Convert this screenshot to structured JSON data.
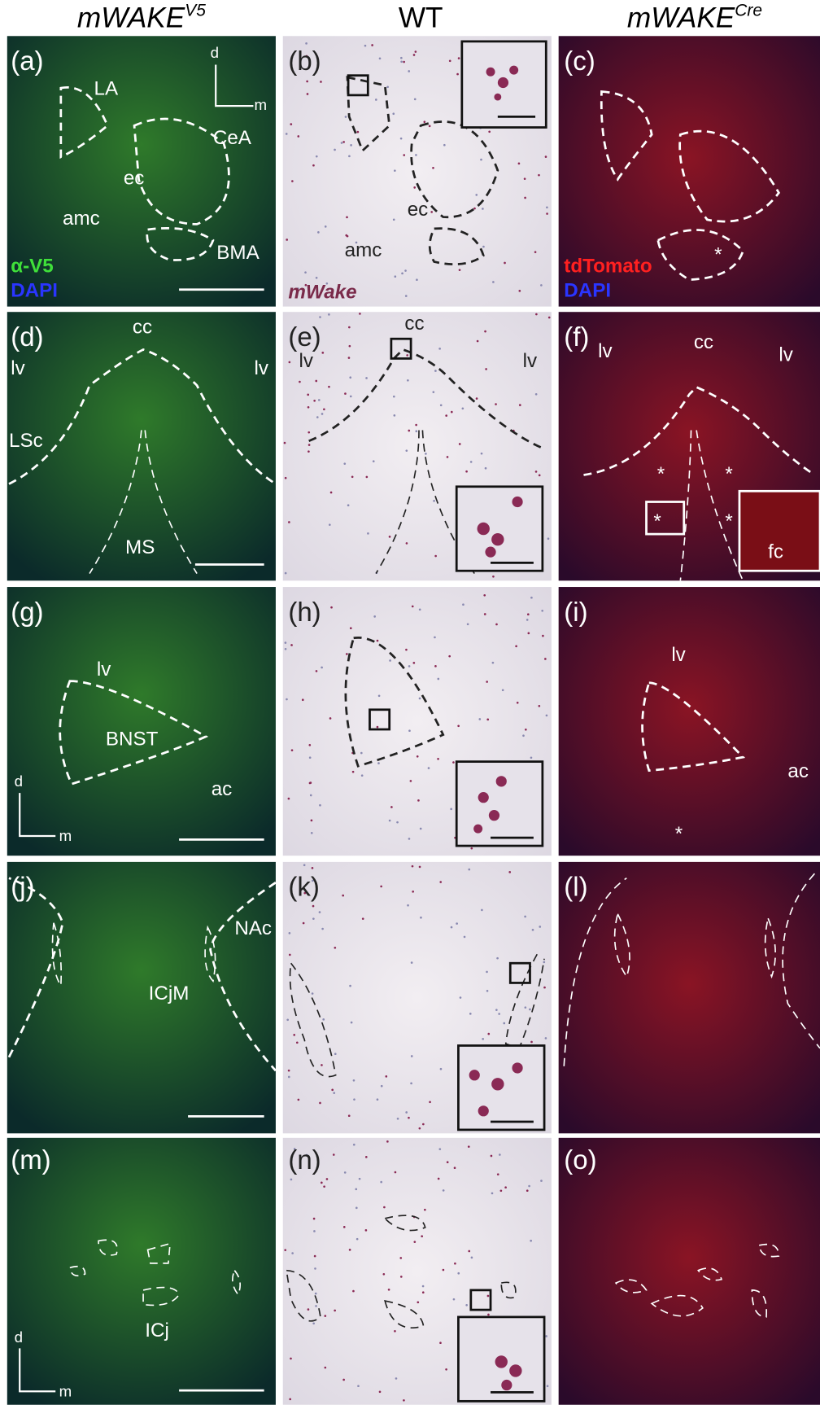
{
  "headers": [
    {
      "text": "mWAKE",
      "sup": "V5"
    },
    {
      "text": "WT"
    },
    {
      "text": "mWAKE",
      "sup": "Cre"
    }
  ],
  "panels": [
    {
      "letter": "(a)",
      "labels": [
        "LA",
        "CeA",
        "ec",
        "amc",
        "BMA",
        "α-V5",
        "DAPI",
        "d",
        "m"
      ]
    },
    {
      "letter": "(b)",
      "labels": [
        "ec",
        "amc",
        "mWake"
      ]
    },
    {
      "letter": "(c)",
      "labels": [
        "*",
        "tdTomato",
        "DAPI"
      ]
    },
    {
      "letter": "(d)",
      "labels": [
        "cc",
        "lv",
        "lv",
        "LSc",
        "MS"
      ]
    },
    {
      "letter": "(e)",
      "labels": [
        "cc",
        "lv",
        "lv"
      ]
    },
    {
      "letter": "(f)",
      "labels": [
        "cc",
        "lv",
        "lv",
        "*",
        "*",
        "*",
        "*",
        "fc"
      ]
    },
    {
      "letter": "(g)",
      "labels": [
        "lv",
        "BNST",
        "ac",
        "d",
        "m"
      ]
    },
    {
      "letter": "(h)",
      "labels": []
    },
    {
      "letter": "(i)",
      "labels": [
        "lv",
        "ac",
        "*"
      ]
    },
    {
      "letter": "(j)",
      "labels": [
        "NAc",
        "ICjM"
      ]
    },
    {
      "letter": "(k)",
      "labels": []
    },
    {
      "letter": "(l)",
      "labels": []
    },
    {
      "letter": "(m)",
      "labels": [
        "ICj",
        "d",
        "m"
      ]
    },
    {
      "letter": "(n)",
      "labels": []
    },
    {
      "letter": "(o)",
      "labels": []
    }
  ]
}
